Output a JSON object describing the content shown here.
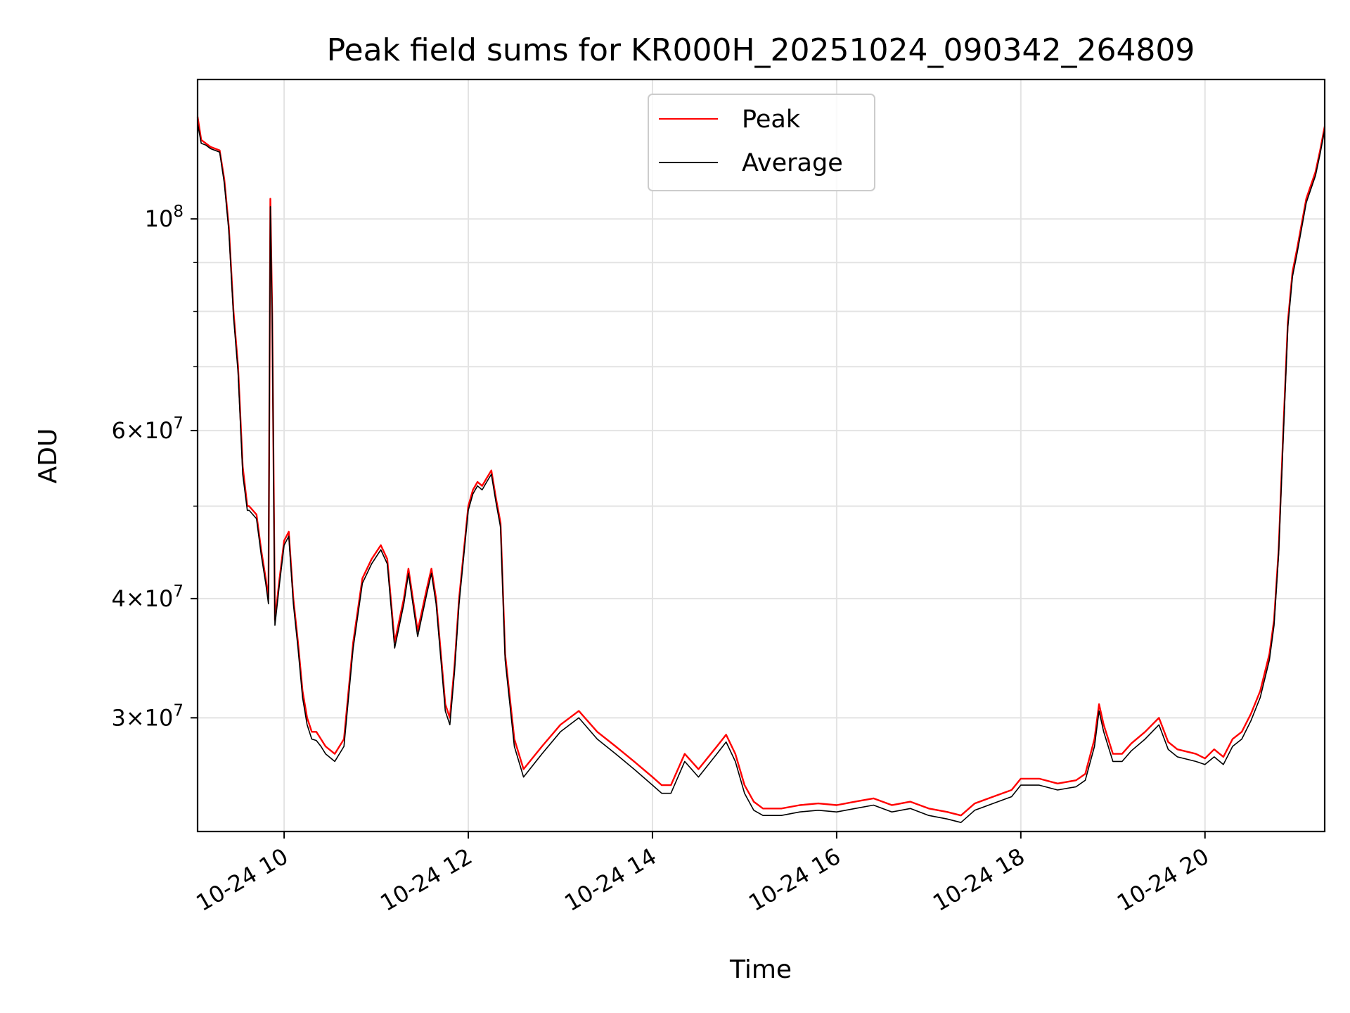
{
  "chart_data": {
    "type": "line",
    "title": "Peak field sums for KR000H_20251024_090342_264809",
    "xlabel": "Time",
    "ylabel": "ADU",
    "yscale": "log",
    "xlim_hours": [
      9.06,
      21.3
    ],
    "ylim": [
      22800000,
      140000000
    ],
    "x_ticks": [
      {
        "hour": 10,
        "label": "10-24 10"
      },
      {
        "hour": 12,
        "label": "10-24 12"
      },
      {
        "hour": 14,
        "label": "10-24 14"
      },
      {
        "hour": 16,
        "label": "10-24 16"
      },
      {
        "hour": 18,
        "label": "10-24 18"
      },
      {
        "hour": 20,
        "label": "10-24 20"
      }
    ],
    "y_major_ticks": [
      {
        "value": 30000000,
        "label_mant": "3",
        "label_exp": "7"
      },
      {
        "value": 40000000,
        "label_mant": "4",
        "label_exp": "7"
      },
      {
        "value": 60000000,
        "label_mant": "6",
        "label_exp": "7"
      },
      {
        "value": 100000000,
        "label_mant": "",
        "label_exp": "8"
      }
    ],
    "y_minor_gridlines": [
      50000000,
      70000000,
      80000000,
      90000000
    ],
    "legend": {
      "location": "upper center",
      "entries": [
        "Peak",
        "Average"
      ]
    },
    "series": [
      {
        "name": "Peak",
        "color": "#ff0000",
        "x": [
          9.06,
          9.1,
          9.15,
          9.2,
          9.3,
          9.35,
          9.4,
          9.45,
          9.5,
          9.55,
          9.6,
          9.62,
          9.7,
          9.75,
          9.8,
          9.83,
          9.85,
          9.87,
          9.9,
          9.95,
          10.0,
          10.05,
          10.1,
          10.15,
          10.2,
          10.25,
          10.3,
          10.35,
          10.4,
          10.45,
          10.55,
          10.65,
          10.75,
          10.85,
          10.95,
          11.05,
          11.12,
          11.2,
          11.3,
          11.35,
          11.45,
          11.55,
          11.6,
          11.65,
          11.75,
          11.8,
          11.85,
          11.9,
          12.0,
          12.05,
          12.1,
          12.15,
          12.2,
          12.25,
          12.3,
          12.35,
          12.4,
          12.5,
          12.6,
          12.8,
          13.0,
          13.2,
          13.4,
          13.6,
          13.8,
          14.0,
          14.1,
          14.2,
          14.35,
          14.5,
          14.7,
          14.8,
          14.9,
          15.0,
          15.1,
          15.2,
          15.4,
          15.6,
          15.8,
          16.0,
          16.2,
          16.4,
          16.6,
          16.8,
          17.0,
          17.2,
          17.35,
          17.5,
          17.7,
          17.9,
          18.0,
          18.2,
          18.4,
          18.6,
          18.7,
          18.8,
          18.85,
          18.9,
          19.0,
          19.1,
          19.2,
          19.35,
          19.5,
          19.6,
          19.7,
          19.9,
          20.0,
          20.1,
          20.2,
          20.3,
          20.4,
          20.5,
          20.6,
          20.7,
          20.75,
          20.8,
          20.85,
          20.9,
          20.95,
          21.0,
          21.1,
          21.2,
          21.25,
          21.3
        ],
        "y": [
          128000000,
          121000000,
          120000000,
          119000000,
          118000000,
          110000000,
          98000000,
          80000000,
          70000000,
          55000000,
          50000000,
          50000000,
          49000000,
          45000000,
          42000000,
          40000000,
          105000000,
          80000000,
          38000000,
          42000000,
          46000000,
          47000000,
          40000000,
          36000000,
          32000000,
          30000000,
          29000000,
          29000000,
          28500000,
          28000000,
          27500000,
          28500000,
          36000000,
          42000000,
          44000000,
          45500000,
          44000000,
          36000000,
          40000000,
          43000000,
          37000000,
          41000000,
          43000000,
          40000000,
          31000000,
          30000000,
          34000000,
          40000000,
          50000000,
          52000000,
          53000000,
          52500000,
          53500000,
          54500000,
          51000000,
          48000000,
          35000000,
          28500000,
          26500000,
          28000000,
          29500000,
          30500000,
          29000000,
          28000000,
          27000000,
          26000000,
          25500000,
          25500000,
          27500000,
          26500000,
          28000000,
          28800000,
          27500000,
          25500000,
          24500000,
          24100000,
          24100000,
          24300000,
          24400000,
          24300000,
          24500000,
          24700000,
          24300000,
          24500000,
          24100000,
          23900000,
          23700000,
          24400000,
          24800000,
          25200000,
          25900000,
          25900000,
          25600000,
          25800000,
          26200000,
          28500000,
          31000000,
          29500000,
          27500000,
          27500000,
          28200000,
          29000000,
          30000000,
          28300000,
          27800000,
          27500000,
          27200000,
          27800000,
          27300000,
          28500000,
          29000000,
          30300000,
          32000000,
          35000000,
          38000000,
          45000000,
          60000000,
          78000000,
          88000000,
          93000000,
          105000000,
          112000000,
          118000000,
          125000000
        ]
      },
      {
        "name": "Average",
        "color": "#000000",
        "x": [
          9.06,
          9.1,
          9.15,
          9.2,
          9.3,
          9.35,
          9.4,
          9.45,
          9.5,
          9.55,
          9.6,
          9.62,
          9.7,
          9.75,
          9.8,
          9.83,
          9.85,
          9.87,
          9.9,
          9.95,
          10.0,
          10.05,
          10.1,
          10.15,
          10.2,
          10.25,
          10.3,
          10.35,
          10.4,
          10.45,
          10.55,
          10.65,
          10.75,
          10.85,
          10.95,
          11.05,
          11.12,
          11.2,
          11.3,
          11.35,
          11.45,
          11.55,
          11.6,
          11.65,
          11.75,
          11.8,
          11.85,
          11.9,
          12.0,
          12.05,
          12.1,
          12.15,
          12.2,
          12.25,
          12.3,
          12.35,
          12.4,
          12.5,
          12.6,
          12.8,
          13.0,
          13.2,
          13.4,
          13.6,
          13.8,
          14.0,
          14.1,
          14.2,
          14.35,
          14.5,
          14.7,
          14.8,
          14.9,
          15.0,
          15.1,
          15.2,
          15.4,
          15.6,
          15.8,
          16.0,
          16.2,
          16.4,
          16.6,
          16.8,
          17.0,
          17.2,
          17.35,
          17.5,
          17.7,
          17.9,
          18.0,
          18.2,
          18.4,
          18.6,
          18.7,
          18.8,
          18.85,
          18.9,
          19.0,
          19.1,
          19.2,
          19.35,
          19.5,
          19.6,
          19.7,
          19.9,
          20.0,
          20.1,
          20.2,
          20.3,
          20.4,
          20.5,
          20.6,
          20.7,
          20.75,
          20.8,
          20.85,
          20.9,
          20.95,
          21.0,
          21.1,
          21.2,
          21.25,
          21.3
        ],
        "y": [
          126000000,
          120000000,
          119500000,
          118500000,
          117500000,
          109000000,
          97000000,
          79000000,
          69000000,
          54000000,
          49500000,
          49500000,
          48500000,
          44500000,
          41500000,
          39500000,
          103000000,
          79000000,
          37500000,
          41500000,
          45500000,
          46500000,
          39500000,
          35500000,
          31500000,
          29500000,
          28500000,
          28400000,
          28000000,
          27500000,
          27000000,
          28000000,
          35500000,
          41500000,
          43500000,
          45000000,
          43500000,
          35500000,
          39500000,
          42500000,
          36500000,
          40500000,
          42500000,
          39500000,
          30500000,
          29500000,
          33500000,
          39500000,
          49500000,
          51500000,
          52500000,
          52000000,
          53000000,
          54000000,
          50500000,
          47500000,
          34500000,
          28000000,
          26000000,
          27500000,
          29000000,
          30000000,
          28500000,
          27500000,
          26500000,
          25500000,
          25000000,
          25000000,
          27000000,
          26000000,
          27500000,
          28300000,
          27000000,
          25000000,
          24000000,
          23700000,
          23700000,
          23900000,
          24000000,
          23900000,
          24100000,
          24300000,
          23900000,
          24100000,
          23700000,
          23500000,
          23300000,
          24000000,
          24400000,
          24800000,
          25500000,
          25500000,
          25200000,
          25400000,
          25800000,
          28000000,
          30500000,
          29000000,
          27000000,
          27000000,
          27700000,
          28500000,
          29500000,
          27800000,
          27300000,
          27000000,
          26800000,
          27300000,
          26800000,
          28000000,
          28500000,
          29800000,
          31500000,
          34500000,
          37500000,
          44500000,
          59000000,
          77000000,
          87000000,
          92000000,
          104000000,
          111000000,
          117000000,
          124000000
        ]
      }
    ]
  }
}
